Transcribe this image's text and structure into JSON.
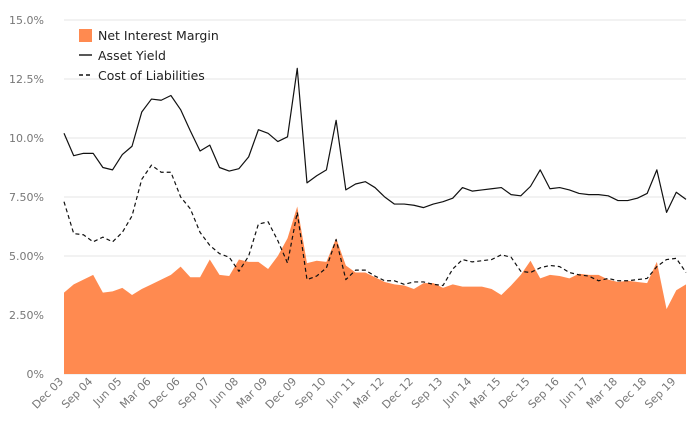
{
  "chart_data": {
    "type": "area",
    "title": "",
    "xlabel": "",
    "ylabel": "",
    "ylim": [
      0,
      15
    ],
    "y_ticks": [
      0,
      2.5,
      5,
      7.5,
      10,
      12.5,
      15
    ],
    "y_tick_labels": [
      "0%",
      "2.50%",
      "5.00%",
      "7.50%",
      "10.0%",
      "12.5%",
      "15.0%"
    ],
    "x_tick_labels": [
      "Dec 03",
      "Sep 04",
      "Jun 05",
      "Mar 06",
      "Dec 06",
      "Sep 07",
      "Jun 08",
      "Mar 09",
      "Dec 09",
      "Sep 10",
      "Jun 11",
      "Mar 12",
      "Dec 12",
      "Sep 13",
      "Jun 14",
      "Mar 15",
      "Dec 15",
      "Sep 16",
      "Jun 17",
      "Mar 18",
      "Dec 18",
      "Sep 19"
    ],
    "x_tick_every": 3,
    "grid": "horizontal",
    "legend_position": "top-left",
    "colors": {
      "area_fill": "#ff8a50",
      "line": "#111111",
      "grid": "#e6e6e6",
      "tick_text": "#777777"
    },
    "series": [
      {
        "name": "Net Interest Margin",
        "style": "area",
        "values": [
          3.45,
          3.8,
          4.0,
          4.2,
          3.45,
          3.5,
          3.65,
          3.35,
          3.6,
          3.8,
          4.0,
          4.2,
          4.55,
          4.1,
          4.1,
          4.85,
          4.2,
          4.15,
          4.85,
          4.75,
          4.75,
          4.45,
          5.0,
          5.75,
          7.1,
          4.7,
          4.8,
          4.75,
          5.75,
          4.6,
          4.3,
          4.3,
          4.1,
          3.9,
          3.8,
          3.75,
          3.6,
          3.85,
          3.85,
          3.65,
          3.8,
          3.7,
          3.7,
          3.7,
          3.6,
          3.35,
          3.75,
          4.2,
          4.8,
          4.05,
          4.2,
          4.15,
          4.05,
          4.25,
          4.2,
          4.2,
          4.0,
          3.9,
          3.95,
          3.9,
          3.85,
          4.75,
          2.75,
          3.55,
          3.8
        ]
      },
      {
        "name": "Asset Yield",
        "style": "solid",
        "values": [
          10.2,
          9.25,
          9.35,
          9.35,
          8.75,
          8.65,
          9.3,
          9.65,
          11.1,
          11.65,
          11.6,
          11.8,
          11.2,
          10.3,
          9.45,
          9.7,
          8.75,
          8.6,
          8.7,
          9.2,
          10.35,
          10.2,
          9.85,
          10.05,
          12.95,
          8.1,
          8.4,
          8.65,
          10.75,
          7.8,
          8.05,
          8.15,
          7.9,
          7.5,
          7.2,
          7.2,
          7.15,
          7.05,
          7.2,
          7.3,
          7.45,
          7.9,
          7.75,
          7.8,
          7.85,
          7.9,
          7.6,
          7.55,
          7.95,
          8.65,
          7.85,
          7.9,
          7.8,
          7.65,
          7.6,
          7.6,
          7.55,
          7.35,
          7.35,
          7.45,
          7.65,
          8.65,
          6.85,
          7.7,
          7.4
        ]
      },
      {
        "name": "Cost of Liabilities",
        "style": "dashed",
        "values": [
          7.3,
          5.95,
          5.9,
          5.6,
          5.8,
          5.6,
          6.0,
          6.7,
          8.25,
          8.85,
          8.55,
          8.55,
          7.5,
          7.0,
          6.0,
          5.45,
          5.1,
          4.95,
          4.35,
          5.0,
          6.35,
          6.45,
          5.65,
          4.7,
          6.85,
          4.0,
          4.15,
          4.5,
          5.7,
          4.0,
          4.4,
          4.4,
          4.15,
          3.95,
          3.95,
          3.8,
          3.9,
          3.9,
          3.8,
          3.75,
          4.45,
          4.85,
          4.75,
          4.8,
          4.85,
          5.05,
          4.95,
          4.35,
          4.3,
          4.5,
          4.6,
          4.55,
          4.3,
          4.2,
          4.15,
          3.95,
          4.05,
          3.95,
          3.95,
          4.0,
          4.05,
          4.55,
          4.85,
          4.9,
          4.3
        ]
      }
    ]
  }
}
